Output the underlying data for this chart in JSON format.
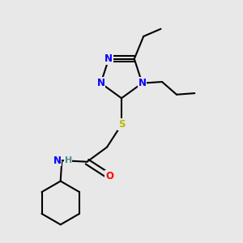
{
  "background_color": "#e8e8e8",
  "atom_colors": {
    "N": "#0000ff",
    "S": "#b8b800",
    "O": "#ff0000",
    "C": "#000000",
    "H": "#4a9090"
  },
  "bond_color": "#000000",
  "bond_width": 1.5
}
